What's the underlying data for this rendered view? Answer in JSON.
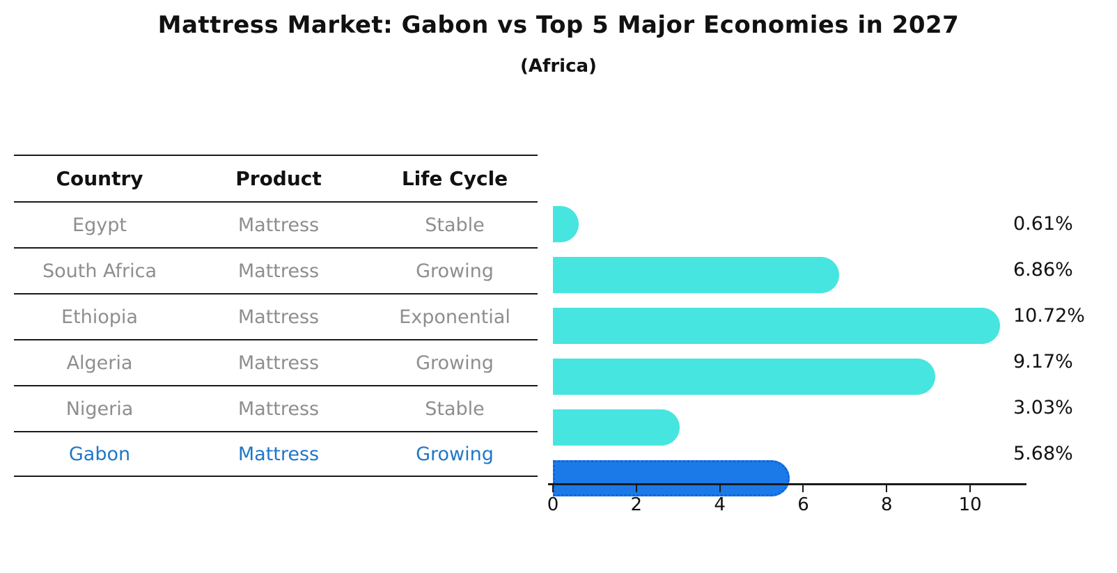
{
  "chart_data": {
    "type": "bar",
    "orientation": "horizontal",
    "title": "Mattress Market: Gabon vs Top 5 Major Economies in 2027",
    "subtitle": "(Africa)",
    "categories": [
      "Egypt",
      "South Africa",
      "Ethiopia",
      "Algeria",
      "Nigeria",
      "Gabon"
    ],
    "values": [
      0.61,
      6.86,
      10.72,
      9.17,
      3.03,
      5.68
    ],
    "value_labels": [
      "0.61%",
      "6.86%",
      "10.72%",
      "9.17%",
      "3.03%",
      "5.68%"
    ],
    "x_ticks": [
      0,
      2,
      4,
      6,
      8,
      10
    ],
    "xlim": [
      0,
      11.3
    ],
    "grid": false,
    "legend": false,
    "highlight_index": 5,
    "colors": {
      "bar": "#46E5E0",
      "highlight": "#1B7AE8",
      "highlight_border": "#0B64DC",
      "line": "#1a1a1a",
      "muted_text": "#8e8e8e",
      "blue_text": "#1f77c8"
    }
  },
  "table": {
    "columns": [
      "Country",
      "Product",
      "Life Cycle"
    ],
    "rows": [
      {
        "country": "Egypt",
        "product": "Mattress",
        "life_cycle": "Stable",
        "highlight": false
      },
      {
        "country": "South Africa",
        "product": "Mattress",
        "life_cycle": "Growing",
        "highlight": false
      },
      {
        "country": "Ethiopia",
        "product": "Mattress",
        "life_cycle": "Exponential",
        "highlight": false
      },
      {
        "country": "Algeria",
        "product": "Mattress",
        "life_cycle": "Growing",
        "highlight": false
      },
      {
        "country": "Nigeria",
        "product": "Mattress",
        "life_cycle": "Stable",
        "highlight": false
      },
      {
        "country": "Gabon",
        "product": "Mattress",
        "life_cycle": "Growing",
        "highlight": true
      }
    ]
  }
}
